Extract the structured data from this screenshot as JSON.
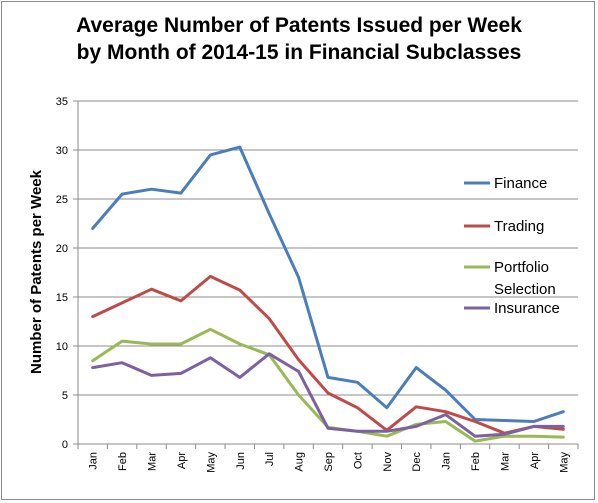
{
  "chart_data": {
    "type": "line",
    "title": [
      "Average Number of Patents Issued per Week",
      "by Month of 2014-15 in Financial Subclasses"
    ],
    "xlabel": "",
    "ylabel": "Number of Patents per Week",
    "ylim": [
      0,
      35
    ],
    "yticks": [
      0,
      5,
      10,
      15,
      20,
      25,
      30,
      35
    ],
    "grid": true,
    "legend": "right",
    "categories": [
      "Jan",
      "Feb",
      "Mar",
      "Apr",
      "May",
      "Jun",
      "Jul",
      "Aug",
      "Sep",
      "Oct",
      "Nov",
      "Dec",
      "Jan",
      "Feb",
      "Mar",
      "Apr",
      "May"
    ],
    "series": [
      {
        "name": "Finance",
        "color": "#4a7ebb",
        "values": [
          22.0,
          25.5,
          26.0,
          25.6,
          29.5,
          30.3,
          23.5,
          17.0,
          6.8,
          6.3,
          3.7,
          7.8,
          5.5,
          2.5,
          2.4,
          2.3,
          3.3
        ]
      },
      {
        "name": "Trading",
        "color": "#be4b48",
        "values": [
          13.0,
          14.4,
          15.8,
          14.6,
          17.1,
          15.7,
          12.8,
          8.6,
          5.2,
          3.7,
          1.4,
          3.8,
          3.3,
          2.3,
          1.1,
          1.8,
          1.5
        ]
      },
      {
        "name": "Portfolio Selection",
        "legend_lines": [
          "Portfolio",
          "Selection"
        ],
        "color": "#98b954",
        "values": [
          8.5,
          10.5,
          10.2,
          10.2,
          11.7,
          10.2,
          9.1,
          5.0,
          1.7,
          1.3,
          0.8,
          2.0,
          2.3,
          0.3,
          0.8,
          0.8,
          0.7
        ]
      },
      {
        "name": "Insurance",
        "color": "#7d60a0",
        "values": [
          7.8,
          8.3,
          7.0,
          7.2,
          8.8,
          6.8,
          9.2,
          7.4,
          1.6,
          1.3,
          1.3,
          1.8,
          3.0,
          0.8,
          1.0,
          1.8,
          1.8
        ]
      }
    ]
  }
}
